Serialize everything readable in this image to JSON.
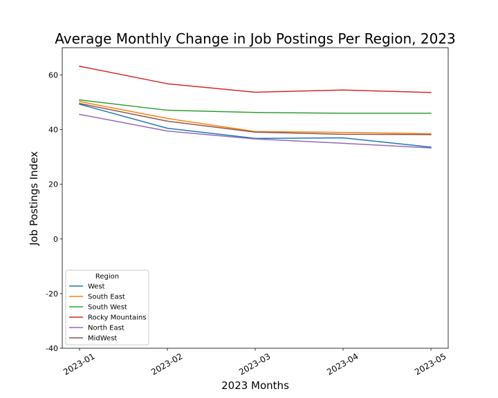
{
  "chart_data": {
    "type": "line",
    "title": "Average Monthly Change in Job Postings Per Region, 2023",
    "xlabel": "2023 Months",
    "ylabel": "Job Postings Index",
    "categories": [
      "2023-01",
      "2023-02",
      "2023-03",
      "2023-04",
      "2023-05"
    ],
    "ylim": [
      -40,
      70
    ],
    "yticks": [
      -40,
      -20,
      0,
      20,
      40,
      60
    ],
    "grid": false,
    "legend": {
      "title": "Region",
      "placement": "lower-left"
    },
    "series": [
      {
        "name": "West",
        "color": "#1f77b4",
        "values": [
          49.3,
          40.5,
          36.8,
          37.0,
          33.6
        ]
      },
      {
        "name": "South East",
        "color": "#ff7f0e",
        "values": [
          50.3,
          44.1,
          39.3,
          39.0,
          38.5
        ]
      },
      {
        "name": "South West",
        "color": "#2ca02c",
        "values": [
          50.9,
          47.1,
          46.3,
          46.0,
          46.0
        ]
      },
      {
        "name": "Rocky Mountains",
        "color": "#d62728",
        "values": [
          63.2,
          56.8,
          53.7,
          54.5,
          53.6
        ]
      },
      {
        "name": "North East",
        "color": "#9467bd",
        "values": [
          45.6,
          39.5,
          36.6,
          35.0,
          33.3
        ]
      },
      {
        "name": "MidWest",
        "color": "#8c564b",
        "values": [
          49.6,
          43.1,
          39.1,
          38.3,
          38.2
        ]
      }
    ]
  }
}
